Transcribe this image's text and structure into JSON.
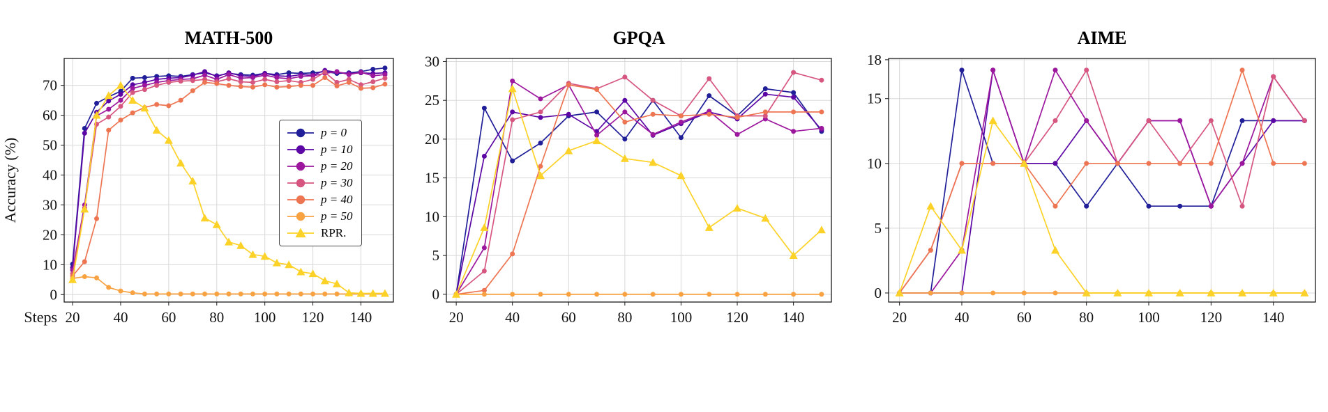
{
  "figure": {
    "ylabel": "Accuracy (%)",
    "x_axis_prefix": "Steps"
  },
  "series_styles": [
    {
      "name": "p = 0",
      "color": "#201f99",
      "marker": "circle",
      "italic": true
    },
    {
      "name": "p = 10",
      "color": "#5c07a5",
      "marker": "circle",
      "italic": true
    },
    {
      "name": "p = 20",
      "color": "#9c179e",
      "marker": "circle",
      "italic": true
    },
    {
      "name": "p = 30",
      "color": "#d6567f",
      "marker": "circle",
      "italic": true
    },
    {
      "name": "p = 40",
      "color": "#ee7552",
      "marker": "circle",
      "italic": true
    },
    {
      "name": "p = 50",
      "color": "#f9a242",
      "marker": "circle",
      "italic": true
    },
    {
      "name": "RPR.",
      "color": "#fcd228",
      "marker": "triangle",
      "italic": false
    }
  ],
  "chart_data": [
    {
      "type": "line",
      "title": "MATH-500",
      "ylabel": "Accuracy (%)",
      "x_prefix": "Steps",
      "xlim": [
        16.5,
        153.5
      ],
      "ylim": [
        -2.5,
        79
      ],
      "xticks": [
        20,
        40,
        60,
        80,
        100,
        120,
        140
      ],
      "yticks": [
        0,
        10,
        20,
        30,
        40,
        50,
        60,
        70
      ],
      "grid": true,
      "legend_position": "center-right",
      "x": [
        20,
        25,
        30,
        35,
        40,
        45,
        50,
        55,
        60,
        65,
        70,
        75,
        80,
        85,
        90,
        95,
        100,
        105,
        110,
        115,
        120,
        125,
        130,
        135,
        140,
        145,
        150
      ],
      "series": [
        {
          "name": "p = 0",
          "values": [
            10.2,
            55.6,
            64.0,
            66.2,
            68.0,
            72.4,
            72.6,
            73.0,
            73.2,
            73.0,
            73.6,
            74.2,
            73.2,
            74.0,
            73.6,
            73.4,
            74.0,
            73.6,
            74.2,
            74.0,
            74.2,
            74.6,
            74.0,
            74.2,
            74.6,
            75.4,
            75.8
          ]
        },
        {
          "name": "p = 10",
          "values": [
            9.0,
            54.0,
            61.0,
            64.8,
            67.0,
            70.2,
            71.0,
            72.0,
            72.4,
            72.6,
            73.4,
            74.6,
            73.0,
            74.2,
            73.2,
            73.0,
            74.0,
            73.2,
            73.0,
            73.6,
            73.4,
            75.0,
            74.4,
            74.0,
            74.2,
            74.0,
            74.2
          ]
        },
        {
          "name": "p = 20",
          "values": [
            8.2,
            30.0,
            59.8,
            62.0,
            65.0,
            69.0,
            70.0,
            71.0,
            71.6,
            72.0,
            72.2,
            73.4,
            72.0,
            73.6,
            72.4,
            72.6,
            73.4,
            72.6,
            72.2,
            73.0,
            73.2,
            74.0,
            74.6,
            73.6,
            74.4,
            73.2,
            73.6
          ]
        },
        {
          "name": "p = 30",
          "values": [
            7.0,
            29.0,
            57.0,
            59.4,
            63.0,
            67.6,
            68.6,
            70.0,
            71.0,
            71.4,
            71.6,
            72.0,
            71.2,
            72.2,
            71.2,
            71.0,
            72.0,
            71.2,
            71.6,
            71.0,
            72.0,
            74.4,
            71.0,
            72.0,
            70.2,
            71.2,
            72.4
          ]
        },
        {
          "name": "p = 40",
          "values": [
            6.2,
            11.0,
            25.4,
            55.0,
            58.4,
            60.8,
            62.6,
            63.6,
            63.2,
            65.0,
            68.2,
            71.0,
            70.6,
            70.0,
            69.6,
            69.4,
            70.2,
            69.4,
            69.6,
            70.0,
            70.0,
            72.6,
            69.8,
            71.0,
            69.0,
            69.2,
            70.4
          ]
        },
        {
          "name": "p = 50",
          "values": [
            5.4,
            6.0,
            5.6,
            2.4,
            1.2,
            0.6,
            0.2,
            0.2,
            0.2,
            0.2,
            0.2,
            0.2,
            0.2,
            0.2,
            0.2,
            0.2,
            0.2,
            0.2,
            0.2,
            0.2,
            0.2,
            0.2,
            0.2,
            0.2,
            0.2,
            0.2,
            0.2
          ]
        },
        {
          "name": "RPR.",
          "values": [
            5.0,
            28.6,
            60.0,
            66.6,
            70.0,
            65.0,
            62.4,
            55.0,
            51.6,
            44.0,
            38.0,
            25.6,
            23.4,
            17.6,
            16.4,
            13.4,
            12.8,
            10.6,
            10.0,
            7.6,
            7.0,
            4.6,
            3.6,
            0.6,
            0.4,
            0.4,
            0.4
          ]
        }
      ]
    },
    {
      "type": "line",
      "title": "GPQA",
      "xlim": [
        16.5,
        153.5
      ],
      "ylim": [
        -1,
        30.4
      ],
      "xticks": [
        20,
        40,
        60,
        80,
        100,
        120,
        140
      ],
      "yticks": [
        0,
        5,
        10,
        15,
        20,
        25,
        30
      ],
      "grid": true,
      "x": [
        20,
        30,
        40,
        50,
        60,
        70,
        80,
        90,
        100,
        110,
        120,
        130,
        140,
        150
      ],
      "series": [
        {
          "name": "p = 0",
          "values": [
            0,
            24.0,
            17.2,
            19.5,
            23.0,
            23.5,
            20.0,
            25.0,
            20.2,
            25.6,
            23.0,
            26.5,
            26.0,
            21.0
          ]
        },
        {
          "name": "p = 10",
          "values": [
            0,
            17.8,
            23.5,
            22.8,
            23.2,
            21.0,
            25.0,
            20.5,
            22.0,
            23.5,
            22.6,
            25.8,
            25.4,
            21.2
          ]
        },
        {
          "name": "p = 20",
          "values": [
            0,
            6.0,
            27.5,
            25.2,
            27.0,
            20.5,
            23.5,
            20.6,
            22.2,
            23.6,
            20.6,
            22.6,
            21.0,
            21.4
          ]
        },
        {
          "name": "p = 30",
          "values": [
            0,
            3.0,
            22.5,
            23.5,
            27.2,
            26.5,
            28.0,
            25.0,
            23.0,
            27.8,
            23.0,
            23.0,
            28.6,
            27.6
          ]
        },
        {
          "name": "p = 40",
          "values": [
            0,
            0.5,
            5.2,
            16.5,
            27.0,
            26.4,
            22.2,
            23.2,
            23.0,
            23.2,
            22.8,
            23.5,
            23.5,
            23.5
          ]
        },
        {
          "name": "p = 50",
          "values": [
            0,
            0,
            0,
            0,
            0,
            0,
            0,
            0,
            0,
            0,
            0,
            0,
            0,
            0
          ]
        },
        {
          "name": "RPR.",
          "values": [
            0,
            8.6,
            26.5,
            15.3,
            18.5,
            19.8,
            17.5,
            17.0,
            15.3,
            8.6,
            11.1,
            9.8,
            5.0,
            8.3
          ]
        }
      ]
    },
    {
      "type": "line",
      "title": "AIME",
      "xlim": [
        16.5,
        153.5
      ],
      "ylim": [
        -0.7,
        18.1
      ],
      "xticks": [
        20,
        40,
        60,
        80,
        100,
        120,
        140
      ],
      "yticks": [
        0,
        5,
        10,
        15,
        18
      ],
      "grid": true,
      "x": [
        20,
        30,
        40,
        50,
        60,
        70,
        80,
        90,
        100,
        110,
        120,
        130,
        140,
        150
      ],
      "series": [
        {
          "name": "p = 0",
          "values": [
            0,
            0,
            17.2,
            10,
            10,
            10,
            6.7,
            10,
            6.7,
            6.7,
            6.7,
            13.3,
            13.3,
            13.3
          ]
        },
        {
          "name": "p = 10",
          "values": [
            0,
            0,
            0,
            17.2,
            10,
            10,
            13.3,
            10,
            13.3,
            13.3,
            6.7,
            10,
            13.3,
            13.3
          ]
        },
        {
          "name": "p = 20",
          "values": [
            0,
            0,
            3.3,
            17.2,
            10,
            17.2,
            13.3,
            10,
            13.3,
            13.3,
            6.7,
            10,
            16.7,
            13.3
          ]
        },
        {
          "name": "p = 30",
          "values": [
            0,
            3.3,
            10,
            10,
            10,
            13.3,
            17.2,
            10,
            13.3,
            10,
            13.3,
            6.7,
            16.7,
            13.3
          ]
        },
        {
          "name": "p = 40",
          "values": [
            0,
            3.3,
            10,
            10,
            10,
            6.7,
            10,
            10,
            10,
            10,
            10,
            17.2,
            10,
            10
          ]
        },
        {
          "name": "p = 50",
          "values": [
            0,
            0,
            0,
            0,
            0,
            0,
            0,
            0,
            0,
            0,
            0,
            0,
            0,
            0
          ]
        },
        {
          "name": "RPR.",
          "values": [
            0,
            6.7,
            3.3,
            13.3,
            10,
            3.3,
            0,
            0,
            0,
            0,
            0,
            0,
            0,
            0
          ]
        }
      ]
    }
  ]
}
